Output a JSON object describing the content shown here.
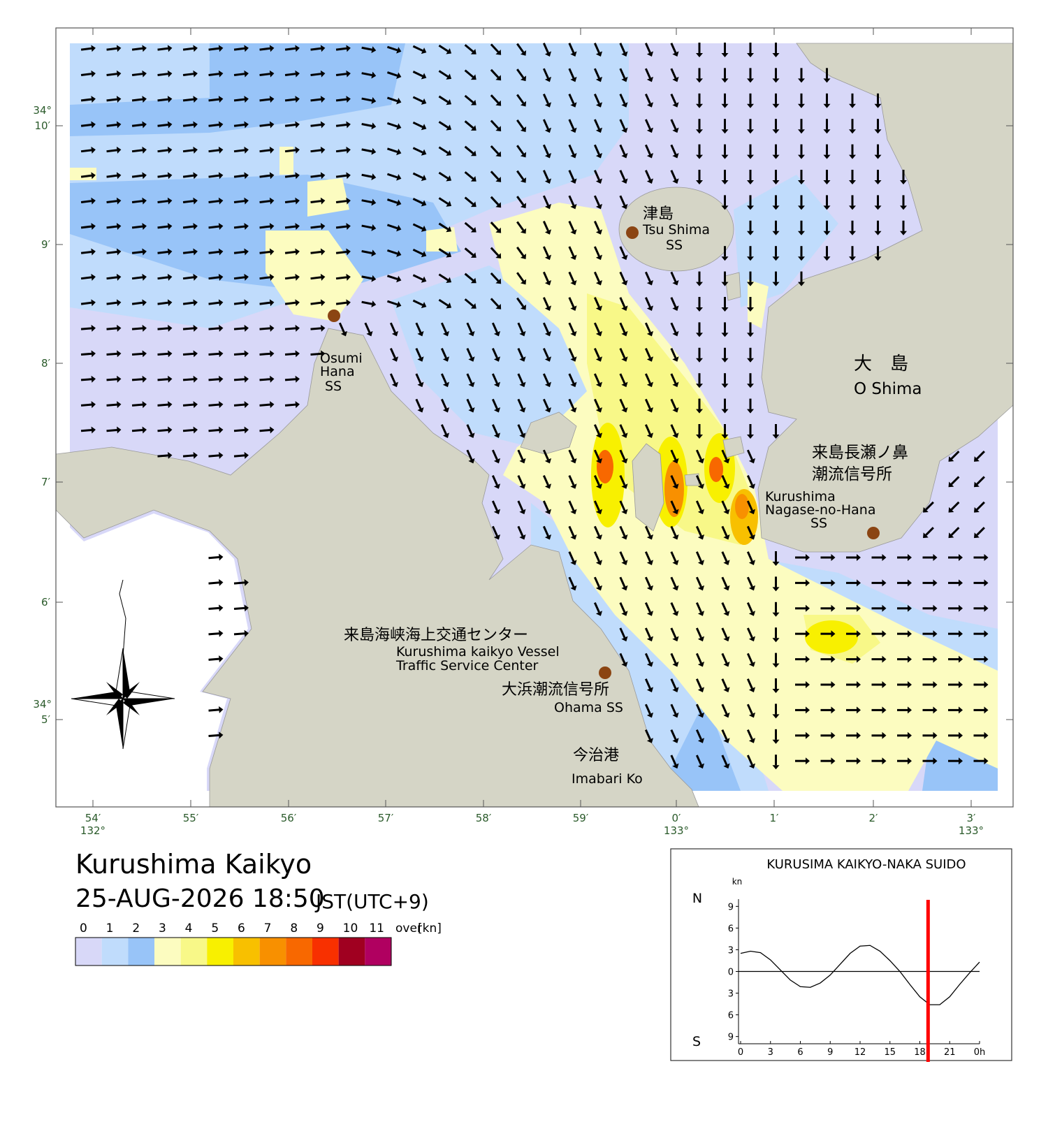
{
  "map": {
    "lat_degree_labels": [
      "34°",
      "34°"
    ],
    "lat_minute_labels": [
      "10′",
      "9′",
      "8′",
      "7′",
      "6′",
      "5′"
    ],
    "lon_minute_labels": [
      "54′",
      "55′",
      "56′",
      "57′",
      "58′",
      "59′",
      "0′",
      "1′",
      "2′",
      "3′"
    ],
    "lon_degree_labels": [
      "132°",
      "133°",
      "133°"
    ],
    "places": [
      {
        "lines": [
          "津島",
          "Tsu Shima",
          "SS"
        ]
      },
      {
        "lines": [
          "Osumi",
          "Hana",
          "SS"
        ]
      },
      {
        "lines": [
          "大　島",
          "O Shima"
        ]
      },
      {
        "lines": [
          "来島長瀬ノ鼻",
          "潮流信号所",
          "Kurushima",
          "Nagase-no-Hana",
          "SS"
        ]
      },
      {
        "lines": [
          "来島海峡海上交通センター",
          "Kurushima kaikyo Vessel",
          "Traffic Service Center"
        ]
      },
      {
        "lines": [
          "大浜潮流信号所",
          "Ohama SS"
        ]
      },
      {
        "lines": [
          "今治港",
          "Imabari Ko"
        ]
      }
    ]
  },
  "header": {
    "title": "Kurushima Kaikyo",
    "datetime": "25-AUG-2026 18:50",
    "timezone": "JST(UTC+9)"
  },
  "legend": {
    "labels": [
      "0",
      "1",
      "2",
      "3",
      "4",
      "5",
      "6",
      "7",
      "8",
      "9",
      "10",
      "11",
      "over"
    ],
    "unit": "[kn]",
    "colors": [
      "#d8d8f8",
      "#c0dcfc",
      "#98c4f8",
      "#fcfcc0",
      "#f8f888",
      "#f8f000",
      "#f8c000",
      "#f89000",
      "#f86800",
      "#f83000",
      "#a00020",
      "#b00060"
    ]
  },
  "chart_data": {
    "type": "line",
    "title": "KURUSIMA KAIKYO-NAKA SUIDO",
    "y_unit": "kn",
    "y_top_label": "N",
    "y_bottom_label": "S",
    "x": [
      0,
      1,
      2,
      3,
      4,
      5,
      6,
      7,
      8,
      9,
      10,
      11,
      12,
      13,
      14,
      15,
      16,
      17,
      18,
      19,
      20,
      21,
      22,
      23,
      24
    ],
    "values": [
      2.5,
      2.8,
      2.6,
      1.6,
      0.2,
      -1.2,
      -2.1,
      -2.2,
      -1.6,
      -0.5,
      1.0,
      2.5,
      3.5,
      3.6,
      2.8,
      1.5,
      0,
      -1.8,
      -3.5,
      -4.6,
      -4.6,
      -3.5,
      -1.8,
      -0.2,
      1.3
    ],
    "color": "#000000",
    "xlim": [
      0,
      24
    ],
    "xticks": [
      0,
      3,
      6,
      9,
      12,
      15,
      18,
      21,
      {
        "value": 24,
        "label": "0h"
      }
    ],
    "ylim": [
      -10,
      10
    ],
    "yticks": [
      9,
      6,
      3,
      0,
      {
        "value": -3,
        "label": "3"
      },
      {
        "value": -6,
        "label": "6"
      },
      {
        "value": -9,
        "label": "9"
      }
    ],
    "current_time": 18.83,
    "current_time_color": "#ff0000"
  }
}
